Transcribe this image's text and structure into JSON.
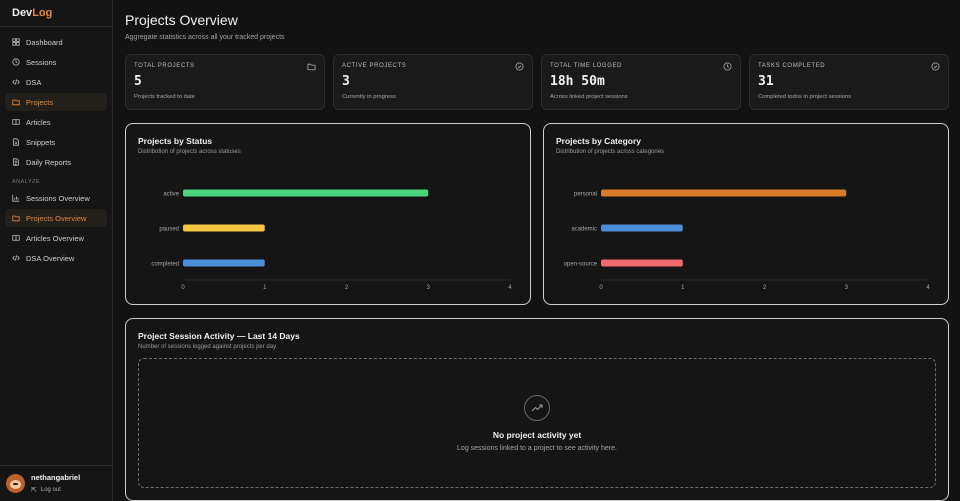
{
  "app": {
    "brand_part1": "Dev",
    "brand_part2": "Log",
    "accent_color": "#e9883a"
  },
  "sidebar": {
    "items": [
      {
        "label": "Dashboard",
        "icon": "dashboard-icon"
      },
      {
        "label": "Sessions",
        "icon": "clock-icon"
      },
      {
        "label": "DSA",
        "icon": "code-icon"
      },
      {
        "label": "Projects",
        "icon": "folder-icon",
        "active": true
      },
      {
        "label": "Articles",
        "icon": "book-icon"
      },
      {
        "label": "Snippets",
        "icon": "document-icon"
      },
      {
        "label": "Daily Reports",
        "icon": "report-icon"
      }
    ],
    "section_label": "ANALYZE",
    "analyze_items": [
      {
        "label": "Sessions Overview",
        "icon": "bar-chart-icon"
      },
      {
        "label": "Projects Overview",
        "icon": "folder-icon",
        "active": true
      },
      {
        "label": "Articles Overview",
        "icon": "book-icon"
      },
      {
        "label": "DSA Overview",
        "icon": "code-icon"
      }
    ]
  },
  "user": {
    "name": "nethangabriel",
    "logout_label": "Log out"
  },
  "header": {
    "title": "Projects Overview",
    "subtitle": "Aggregate statistics across all your tracked projects"
  },
  "stats": [
    {
      "label": "TOTAL PROJECTS",
      "value": "5",
      "desc": "Projects tracked to date",
      "icon": "folder-icon"
    },
    {
      "label": "ACTIVE PROJECTS",
      "value": "3",
      "desc": "Currently in progress",
      "icon": "check-circle-icon"
    },
    {
      "label": "TOTAL TIME LOGGED",
      "value": "18h 50m",
      "desc": "Across linked project sessions",
      "icon": "clock-icon"
    },
    {
      "label": "TASKS COMPLETED",
      "value": "31",
      "desc": "Completed todos in project sessions",
      "icon": "check-circle-icon"
    }
  ],
  "charts": {
    "status": {
      "title": "Projects by Status",
      "subtitle": "Distribution of projects across statuses"
    },
    "category": {
      "title": "Projects by Category",
      "subtitle": "Distribution of projects across categories"
    }
  },
  "chart_data": [
    {
      "type": "bar",
      "orientation": "horizontal",
      "title": "Projects by Status",
      "categories": [
        "active",
        "paused",
        "completed"
      ],
      "values": [
        3,
        1,
        1
      ],
      "colors": [
        "#4ad67a",
        "#f5c842",
        "#4a90d9"
      ],
      "xlim": [
        0,
        4
      ],
      "xticks": [
        0,
        1,
        2,
        3,
        4
      ],
      "grid": false
    },
    {
      "type": "bar",
      "orientation": "horizontal",
      "title": "Projects by Category",
      "categories": [
        "personal",
        "academic",
        "open-source"
      ],
      "values": [
        3,
        1,
        1
      ],
      "colors": [
        "#d97a2b",
        "#4a90d9",
        "#ef6b6b"
      ],
      "xlim": [
        0,
        4
      ],
      "xticks": [
        0,
        1,
        2,
        3,
        4
      ],
      "grid": false
    }
  ],
  "activity": {
    "title": "Project Session Activity — Last 14 Days",
    "subtitle": "Number of sessions logged against projects per day",
    "empty_title": "No project activity yet",
    "empty_sub": "Log sessions linked to a project to see activity here.",
    "empty_icon": "trending-up-icon"
  }
}
